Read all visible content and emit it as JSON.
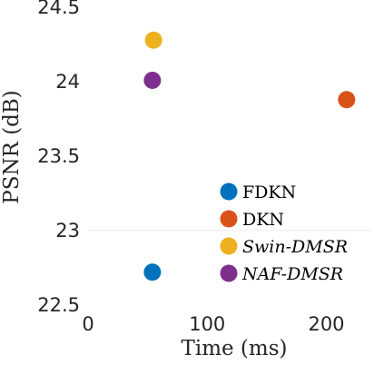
{
  "chart_data": {
    "type": "scatter",
    "xlabel": "Time (ms)",
    "ylabel": "PSNR (dB)",
    "xlim": [
      0,
      240
    ],
    "ylim": [
      22.45,
      24.55
    ],
    "x_ticks": [
      0,
      100,
      200
    ],
    "y_ticks": [
      22.5,
      23,
      23.5,
      24,
      24.5
    ],
    "x_tick_labels": [
      "0",
      "100",
      "200"
    ],
    "y_tick_labels": [
      "22.5",
      "23",
      "23.5",
      "24",
      "24.5"
    ],
    "grid": false,
    "legend_position": "bottom-right",
    "series": [
      {
        "name": "FDKN",
        "color": "#0072BD",
        "italic": false,
        "points": [
          {
            "x": 54,
            "y": 22.72
          }
        ]
      },
      {
        "name": "DKN",
        "color": "#D95319",
        "italic": false,
        "points": [
          {
            "x": 217,
            "y": 23.88
          }
        ]
      },
      {
        "name": "Swin-DMSR",
        "color": "#EDB120",
        "italic": true,
        "points": [
          {
            "x": 55,
            "y": 24.28
          }
        ]
      },
      {
        "name": "NAF-DMSR",
        "color": "#7E2F8E",
        "italic": true,
        "points": [
          {
            "x": 54,
            "y": 24.01
          }
        ]
      }
    ]
  }
}
